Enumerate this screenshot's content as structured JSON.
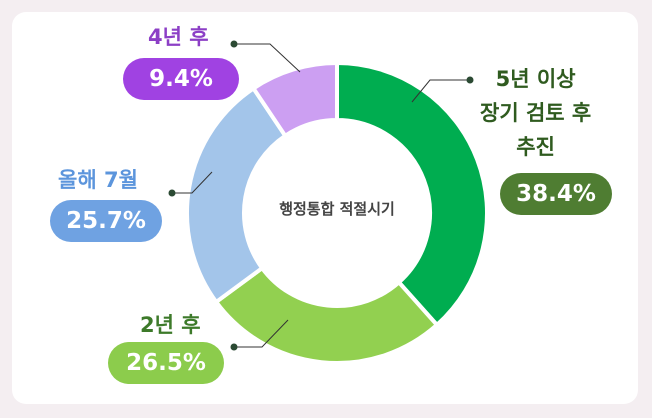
{
  "chart_data": {
    "type": "donut",
    "title": "행정통합 적절시기",
    "categories": [
      "5년 이상\n장기 검토 후\n추진",
      "2년 후",
      "올해 7월",
      "4년 후"
    ],
    "values": [
      38.4,
      26.5,
      25.7,
      9.4
    ],
    "value_labels": [
      "38.4%",
      "26.5%",
      "25.7%",
      "9.4%"
    ],
    "colors": [
      "#00ad50",
      "#92d050",
      "#a3c5ea",
      "#cc9ff2"
    ]
  }
}
